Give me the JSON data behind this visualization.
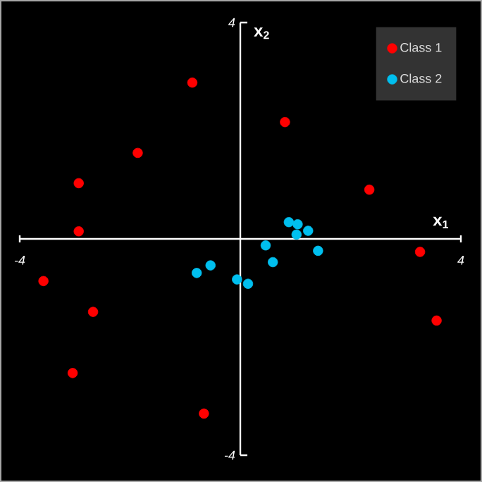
{
  "chart_data": {
    "type": "scatter",
    "xlabel": "x$_{1}$",
    "ylabel": "x$_{2}$",
    "xlim": [
      -4,
      4
    ],
    "ylim": [
      -4,
      4
    ],
    "xticks": [
      -4,
      4
    ],
    "yticks": [
      -4,
      4
    ],
    "legend": "top right",
    "marker": "circle",
    "grid": false,
    "series": [
      {
        "name": "Class 1",
        "color": "#ff0000",
        "x": [
          -0.87,
          0.81,
          -1.86,
          -2.93,
          2.34,
          -2.93,
          3.26,
          -3.57,
          -2.67,
          3.56,
          -3.04,
          -0.66
        ],
        "values": [
          2.89,
          2.16,
          1.59,
          1.03,
          0.91,
          0.14,
          -0.24,
          -0.78,
          -1.35,
          -1.51,
          -2.48,
          -3.23
        ]
      },
      {
        "name": "Class 2",
        "color": "#00bfef",
        "x": [
          0.88,
          1.04,
          1.23,
          1.02,
          0.46,
          1.41,
          0.59,
          -0.54,
          -0.79,
          -0.06,
          0.14
        ],
        "values": [
          0.31,
          0.27,
          0.15,
          0.08,
          -0.12,
          -0.22,
          -0.43,
          -0.49,
          -0.63,
          -0.75,
          -0.83
        ]
      }
    ]
  }
}
